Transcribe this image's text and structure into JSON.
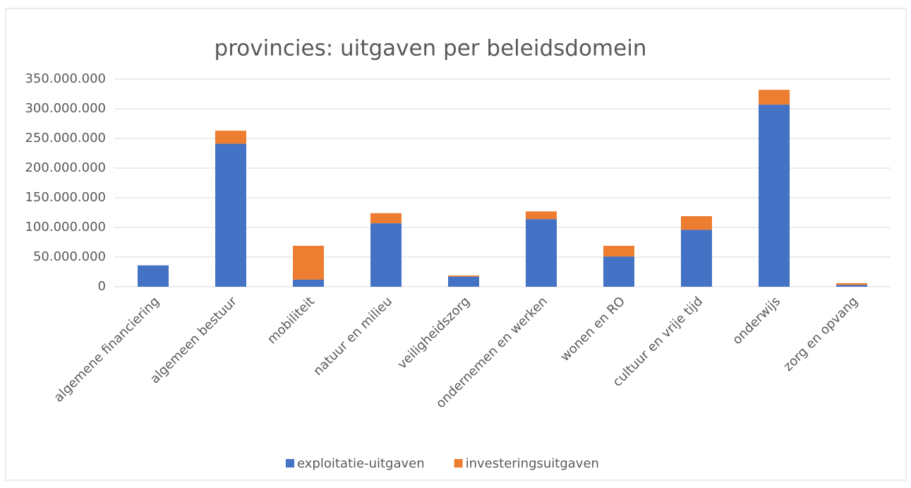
{
  "chart_data": {
    "type": "stacked_bar",
    "title": "provincies: uitgaven per beleidsdomein",
    "categories": [
      "algemene financiering",
      "algemeen bestuur",
      "mobiliteit",
      "natuur en milieu",
      "veiligheidszorg",
      "ondernemen en werken",
      "wonen en RO",
      "cultuur en vrije tijd",
      "onderwijs",
      "zorg en opvang"
    ],
    "series": [
      {
        "name": "exploitatie-uitgaven",
        "color": "#4472c4",
        "values": [
          36000000,
          241000000,
          12000000,
          107000000,
          17000000,
          114000000,
          51000000,
          96000000,
          307000000,
          3000000
        ]
      },
      {
        "name": "investeringsuitgaven",
        "color": "#ed7d31",
        "values": [
          0,
          22000000,
          57000000,
          17000000,
          2000000,
          13000000,
          18000000,
          23000000,
          25000000,
          3000000
        ]
      }
    ],
    "ylim": [
      0,
      350000000
    ],
    "yticks": [
      0,
      {
        "value": 50000000,
        "label": "50.000.000"
      },
      {
        "value": 100000000,
        "label": "100.000.000"
      },
      {
        "value": 150000000,
        "label": "150.000.000"
      },
      {
        "value": 200000000,
        "label": "200.000.000"
      },
      {
        "value": 250000000,
        "label": "250.000.000"
      },
      {
        "value": 300000000,
        "label": "300.000.000"
      },
      {
        "value": 350000000,
        "label": "350.000.000"
      }
    ],
    "grid": true,
    "legend": "bottom"
  }
}
